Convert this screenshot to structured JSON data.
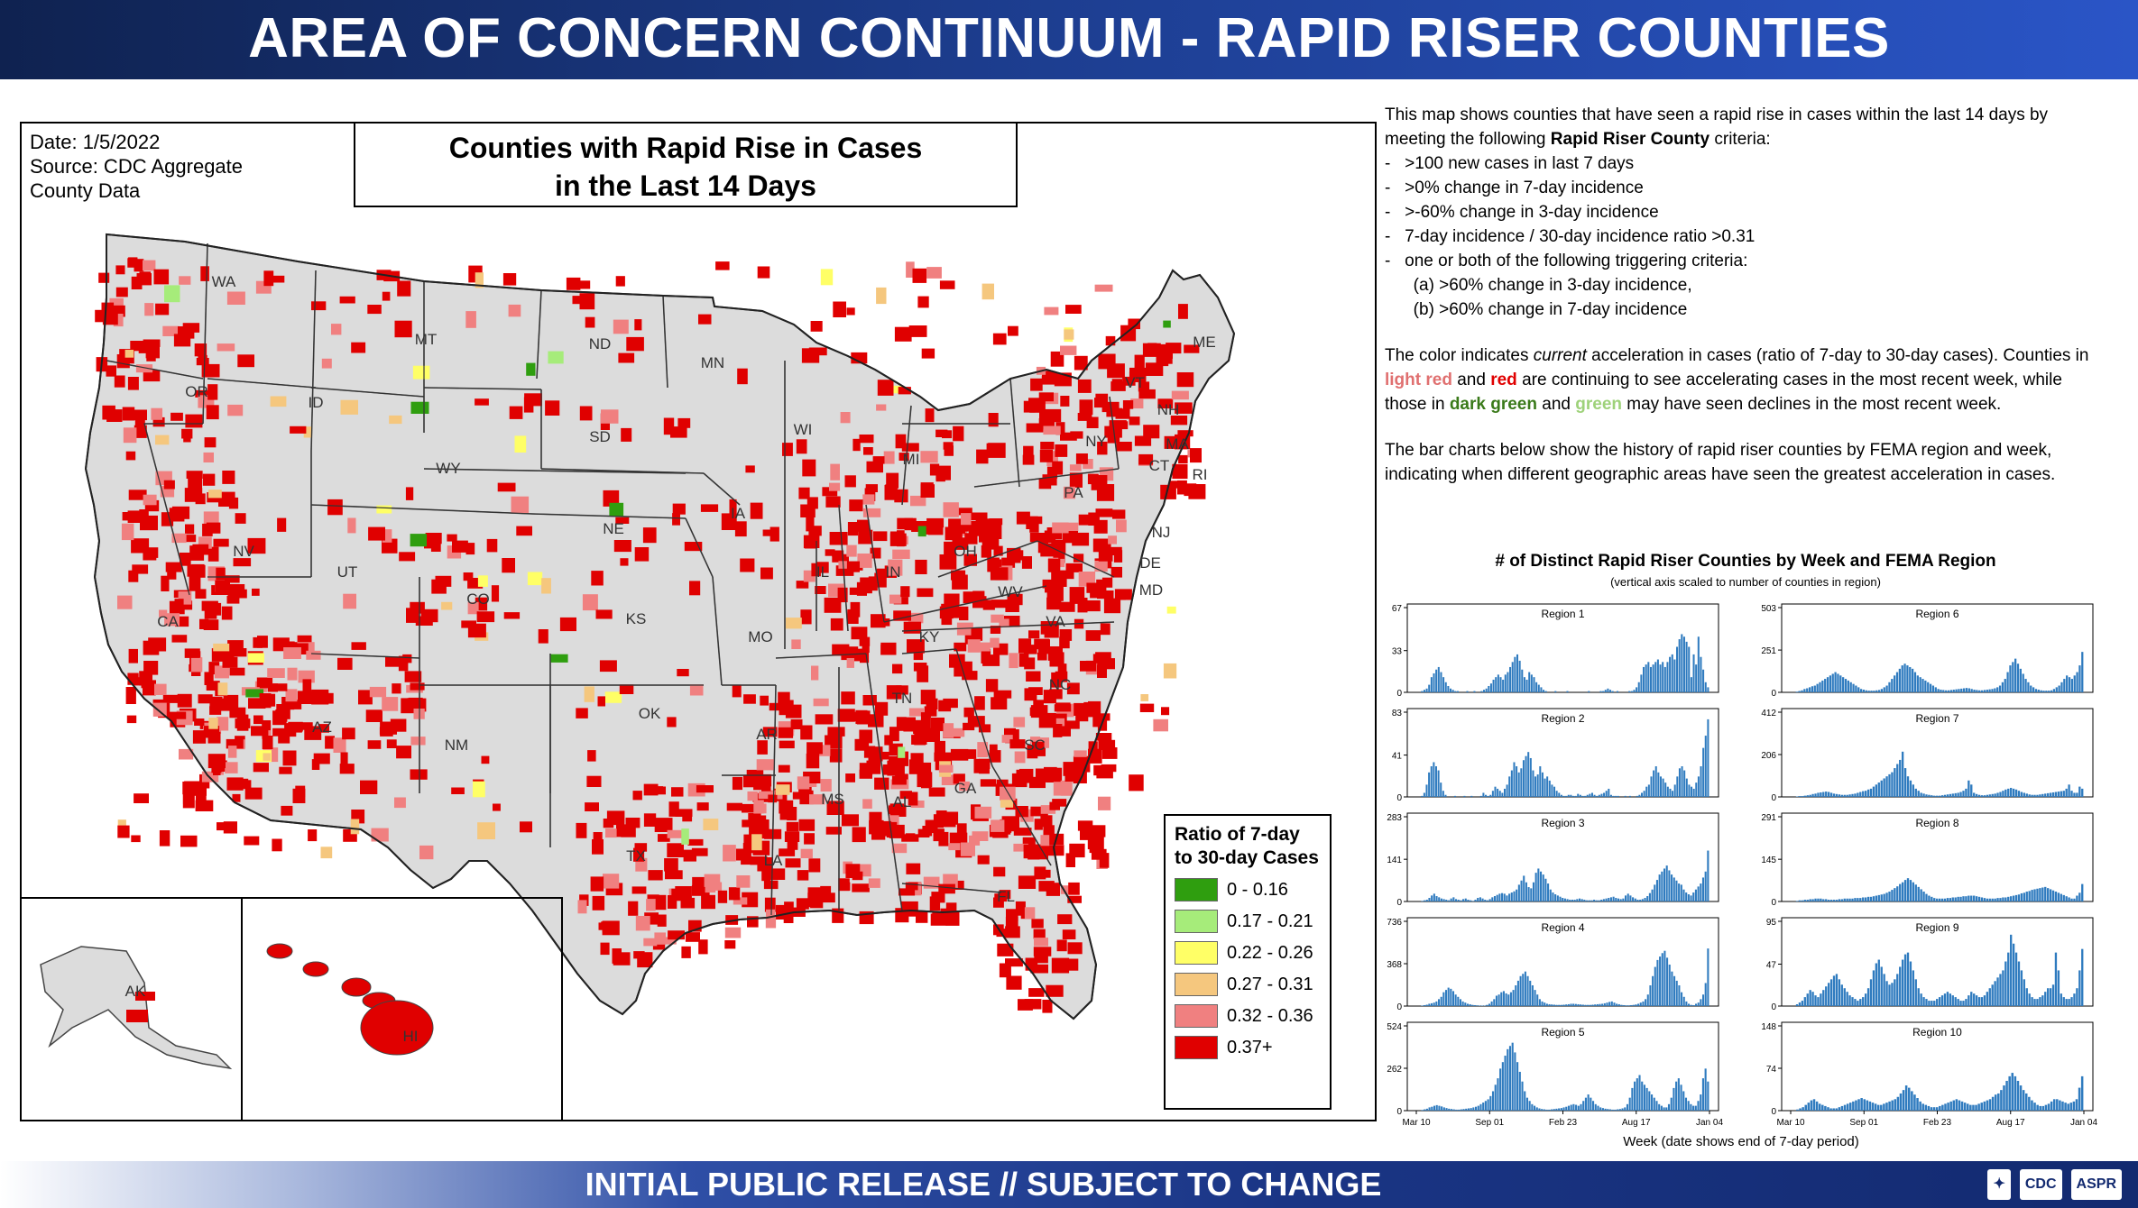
{
  "header": {
    "title": "AREA OF CONCERN CONTINUUM - RAPID RISER COUNTIES"
  },
  "footer": {
    "text": "INITIAL PUBLIC RELEASE // SUBJECT TO CHANGE",
    "logos": [
      "CDC",
      "ASPR"
    ]
  },
  "map": {
    "date_line": "Date: 1/5/2022",
    "source_line1": "Source: CDC Aggregate",
    "source_line2": "County Data",
    "title_line1": "Counties with Rapid Rise in Cases",
    "title_line2": "in the Last 14 Days",
    "state_labels": [
      "WA",
      "OR",
      "ID",
      "MT",
      "ND",
      "MN",
      "SD",
      "WY",
      "NE",
      "IA",
      "NV",
      "UT",
      "CO",
      "KS",
      "MO",
      "CA",
      "AZ",
      "NM",
      "OK",
      "TX",
      "AR",
      "LA",
      "MS",
      "AL",
      "GA",
      "FL",
      "SC",
      "NC",
      "TN",
      "KY",
      "VA",
      "WV",
      "OH",
      "IN",
      "IL",
      "WI",
      "MI",
      "PA",
      "NY",
      "NJ",
      "DE",
      "MD",
      "VT",
      "NH",
      "ME",
      "MA",
      "CT",
      "RI",
      "AK",
      "HI"
    ],
    "legend": {
      "title": "Ratio of 7-day to 30-day Cases",
      "items": [
        {
          "label": "0 - 0.16",
          "color": "#2f9e0f"
        },
        {
          "label": "0.17 - 0.21",
          "color": "#a6ec7a"
        },
        {
          "label": "0.22 - 0.26",
          "color": "#ffff66"
        },
        {
          "label": "0.27 - 0.31",
          "color": "#f5c77e"
        },
        {
          "label": "0.32 - 0.36",
          "color": "#f08080"
        },
        {
          "label": "0.37+",
          "color": "#e00000"
        }
      ]
    }
  },
  "description": {
    "p1_a": "This map shows counties that have seen a rapid rise in cases within the last 14 days by meeting the following ",
    "p1_bold": "Rapid Riser County",
    "p1_b": " criteria:",
    "criteria": [
      "-   >100 new cases in last 7 days",
      "-   >0% change in 7-day incidence",
      "-   >-60% change in 3-day incidence",
      "-   7-day incidence / 30-day incidence ratio >0.31",
      "-   one or both of the following triggering criteria:",
      "      (a) >60% change in 3-day incidence,",
      "      (b) >60% change in 7-day incidence"
    ],
    "p2_a": "The color indicates ",
    "p2_ital": "current",
    "p2_b": " acceleration in cases (ratio of 7-day to 30-day cases). Counties in ",
    "p2_lightred": "light red",
    "p2_and1": " and ",
    "p2_red": "red",
    "p2_c": "  are continuing to see accelerating cases in the most recent week, while those in ",
    "p2_darkgreen": "dark green",
    "p2_and2": " and ",
    "p2_green": "green",
    "p2_d": "  may have seen declines in the most recent week.",
    "p3": "The bar charts below show the history of rapid riser counties by FEMA region and week, indicating when different geographic areas have seen the greatest acceleration in cases."
  },
  "charts": {
    "title": "# of Distinct Rapid Riser Counties by Week and FEMA Region",
    "subtitle": "(vertical axis scaled to number of counties in region)",
    "xlabel": "Week (date shows end of 7-day period)",
    "x_ticks": [
      "Mar 10",
      "Sep 01",
      "Feb 23",
      "Aug 17",
      "Jan 04"
    ]
  },
  "chart_data": [
    {
      "type": "bar",
      "title": "Region 1",
      "ylim": [
        0,
        67
      ],
      "yticks": [
        0,
        33,
        67
      ],
      "values": [
        0,
        0,
        1,
        2,
        3,
        6,
        12,
        15,
        18,
        20,
        16,
        12,
        8,
        5,
        3,
        2,
        1,
        1,
        0,
        0,
        0,
        1,
        0,
        0,
        1,
        0,
        0,
        1,
        2,
        3,
        5,
        7,
        10,
        12,
        14,
        12,
        10,
        14,
        16,
        20,
        24,
        28,
        30,
        25,
        18,
        12,
        10,
        16,
        14,
        12,
        8,
        6,
        4,
        2,
        1,
        0,
        0,
        0,
        1,
        0,
        0,
        0,
        0,
        1,
        0,
        0,
        0,
        0,
        0,
        0,
        0,
        0,
        1,
        0,
        0,
        0,
        0,
        1,
        1,
        2,
        3,
        2,
        1,
        0,
        1,
        0,
        0,
        0,
        0,
        1,
        1,
        2,
        4,
        8,
        14,
        20,
        22,
        24,
        20,
        22,
        24,
        26,
        22,
        24,
        20,
        24,
        28,
        30,
        26,
        36,
        42,
        46,
        44,
        40,
        36,
        12,
        30,
        22,
        44,
        28,
        18,
        8,
        4
      ]
    },
    {
      "type": "bar",
      "title": "Region 2",
      "ylim": [
        0,
        83
      ],
      "yticks": [
        0,
        41,
        83
      ],
      "values": [
        0,
        0,
        1,
        4,
        12,
        24,
        30,
        34,
        30,
        26,
        14,
        6,
        2,
        0,
        0,
        0,
        1,
        0,
        0,
        0,
        1,
        0,
        0,
        1,
        0,
        0,
        0,
        1,
        4,
        2,
        1,
        2,
        6,
        10,
        8,
        6,
        4,
        8,
        12,
        20,
        26,
        34,
        30,
        24,
        28,
        36,
        40,
        44,
        38,
        26,
        20,
        22,
        30,
        24,
        18,
        20,
        16,
        12,
        10,
        6,
        4,
        2,
        1,
        1,
        2,
        2,
        1,
        1,
        3,
        2,
        1,
        1,
        2,
        3,
        4,
        2,
        1,
        2,
        3,
        4,
        6,
        8,
        2,
        1,
        1,
        1,
        0,
        0,
        1,
        0,
        1,
        0,
        0,
        1,
        2,
        4,
        6,
        10,
        12,
        20,
        26,
        30,
        24,
        20,
        18,
        14,
        10,
        8,
        6,
        12,
        20,
        28,
        30,
        26,
        18,
        12,
        10,
        8,
        14,
        20,
        30,
        48,
        60,
        76
      ]
    },
    {
      "type": "bar",
      "title": "Region 3",
      "ylim": [
        0,
        283
      ],
      "yticks": [
        0,
        141,
        283
      ],
      "values": [
        0,
        0,
        2,
        4,
        6,
        12,
        20,
        26,
        18,
        14,
        10,
        8,
        6,
        4,
        10,
        14,
        8,
        6,
        4,
        8,
        10,
        6,
        4,
        2,
        6,
        12,
        14,
        10,
        6,
        4,
        8,
        14,
        18,
        22,
        26,
        28,
        26,
        20,
        26,
        30,
        34,
        40,
        56,
        70,
        86,
        64,
        48,
        44,
        64,
        96,
        110,
        100,
        90,
        76,
        60,
        40,
        30,
        24,
        20,
        16,
        12,
        10,
        8,
        6,
        6,
        6,
        8,
        10,
        8,
        6,
        4,
        4,
        4,
        6,
        4,
        4,
        6,
        8,
        10,
        12,
        14,
        16,
        12,
        10,
        8,
        10,
        20,
        26,
        20,
        14,
        10,
        6,
        6,
        8,
        12,
        18,
        28,
        40,
        56,
        72,
        90,
        100,
        110,
        120,
        104,
        90,
        80,
        70,
        60,
        56,
        40,
        30,
        24,
        20,
        30,
        40,
        50,
        60,
        80,
        100,
        170
      ]
    },
    {
      "type": "bar",
      "title": "Region 4",
      "ylim": [
        0,
        736
      ],
      "yticks": [
        0,
        368,
        736
      ],
      "values": [
        0,
        0,
        4,
        8,
        12,
        20,
        24,
        30,
        40,
        60,
        80,
        120,
        140,
        160,
        150,
        130,
        100,
        80,
        60,
        40,
        30,
        20,
        16,
        10,
        8,
        6,
        4,
        4,
        4,
        10,
        20,
        40,
        60,
        90,
        100,
        120,
        130,
        110,
        100,
        120,
        140,
        180,
        220,
        260,
        280,
        300,
        260,
        220,
        180,
        140,
        100,
        60,
        40,
        30,
        20,
        16,
        14,
        12,
        10,
        10,
        10,
        12,
        14,
        16,
        20,
        20,
        18,
        16,
        14,
        12,
        10,
        10,
        10,
        12,
        14,
        16,
        18,
        20,
        24,
        30,
        36,
        40,
        30,
        20,
        16,
        10,
        8,
        6,
        6,
        8,
        10,
        14,
        20,
        30,
        40,
        60,
        100,
        180,
        260,
        340,
        400,
        430,
        460,
        480,
        420,
        360,
        300,
        260,
        220,
        180,
        120,
        80,
        40,
        20,
        10,
        8,
        20,
        30,
        60,
        100,
        200,
        500
      ]
    },
    {
      "type": "bar",
      "title": "Region 5",
      "ylim": [
        0,
        524
      ],
      "yticks": [
        0,
        262,
        524
      ],
      "values": [
        0,
        0,
        4,
        8,
        12,
        20,
        24,
        30,
        34,
        30,
        26,
        20,
        16,
        12,
        10,
        8,
        6,
        6,
        8,
        10,
        12,
        14,
        16,
        20,
        24,
        30,
        40,
        50,
        60,
        70,
        90,
        120,
        160,
        200,
        260,
        300,
        340,
        380,
        400,
        420,
        360,
        300,
        240,
        180,
        120,
        80,
        60,
        40,
        30,
        20,
        14,
        10,
        8,
        6,
        6,
        8,
        10,
        12,
        14,
        16,
        20,
        24,
        30,
        36,
        40,
        36,
        30,
        40,
        60,
        80,
        100,
        80,
        60,
        40,
        30,
        20,
        16,
        12,
        10,
        8,
        6,
        6,
        8,
        10,
        14,
        20,
        40,
        80,
        140,
        180,
        200,
        220,
        180,
        160,
        140,
        120,
        100,
        80,
        60,
        40,
        30,
        20,
        20,
        40,
        80,
        140,
        180,
        200,
        160,
        120,
        80,
        60,
        40,
        30,
        30,
        60,
        100,
        200,
        260,
        180
      ]
    },
    {
      "type": "bar",
      "title": "Region 6",
      "ylim": [
        0,
        503
      ],
      "yticks": [
        0,
        251,
        503
      ],
      "values": [
        0,
        0,
        4,
        8,
        12,
        20,
        24,
        30,
        36,
        40,
        50,
        60,
        70,
        80,
        90,
        100,
        110,
        120,
        110,
        100,
        90,
        80,
        70,
        60,
        50,
        40,
        30,
        20,
        16,
        12,
        10,
        10,
        10,
        12,
        14,
        20,
        30,
        40,
        60,
        80,
        100,
        120,
        140,
        160,
        170,
        160,
        150,
        140,
        120,
        100,
        90,
        80,
        70,
        60,
        50,
        40,
        30,
        20,
        16,
        14,
        12,
        12,
        14,
        16,
        18,
        20,
        22,
        24,
        26,
        24,
        20,
        16,
        14,
        12,
        12,
        14,
        16,
        18,
        20,
        24,
        30,
        40,
        60,
        80,
        120,
        160,
        180,
        200,
        170,
        140,
        110,
        80,
        60,
        40,
        30,
        20,
        16,
        12,
        10,
        10,
        10,
        12,
        20,
        30,
        40,
        60,
        80,
        100,
        90,
        80,
        100,
        120,
        160,
        240
      ]
    },
    {
      "type": "bar",
      "title": "Region 7",
      "ylim": [
        0,
        412
      ],
      "yticks": [
        0,
        206,
        412
      ],
      "values": [
        0,
        0,
        2,
        4,
        4,
        6,
        8,
        10,
        14,
        16,
        20,
        22,
        24,
        26,
        24,
        20,
        16,
        14,
        12,
        10,
        10,
        10,
        12,
        14,
        16,
        20,
        24,
        28,
        30,
        36,
        40,
        50,
        60,
        70,
        80,
        90,
        100,
        110,
        120,
        140,
        160,
        180,
        220,
        140,
        100,
        80,
        60,
        40,
        30,
        20,
        16,
        12,
        10,
        8,
        6,
        6,
        6,
        8,
        10,
        12,
        14,
        16,
        18,
        20,
        24,
        30,
        40,
        80,
        60,
        20,
        14,
        10,
        8,
        8,
        10,
        12,
        14,
        16,
        20,
        24,
        30,
        36,
        40,
        44,
        40,
        36,
        30,
        24,
        20,
        16,
        12,
        10,
        10,
        10,
        12,
        14,
        16,
        18,
        20,
        22,
        24,
        26,
        28,
        30,
        40,
        60,
        30,
        20,
        20,
        50,
        40
      ]
    },
    {
      "type": "bar",
      "title": "Region 8",
      "ylim": [
        0,
        291
      ],
      "yticks": [
        0,
        145,
        291
      ],
      "values": [
        0,
        0,
        2,
        4,
        4,
        6,
        6,
        8,
        8,
        10,
        10,
        10,
        8,
        8,
        6,
        6,
        6,
        6,
        8,
        8,
        10,
        10,
        10,
        10,
        12,
        12,
        12,
        14,
        14,
        16,
        16,
        18,
        20,
        22,
        24,
        26,
        30,
        34,
        40,
        46,
        52,
        60,
        66,
        74,
        80,
        74,
        66,
        58,
        50,
        42,
        34,
        26,
        20,
        16,
        12,
        10,
        10,
        10,
        10,
        12,
        12,
        14,
        14,
        16,
        16,
        18,
        18,
        20,
        20,
        20,
        18,
        16,
        14,
        12,
        10,
        10,
        10,
        10,
        12,
        12,
        14,
        14,
        16,
        18,
        20,
        22,
        24,
        28,
        30,
        34,
        36,
        40,
        42,
        44,
        46,
        48,
        50,
        46,
        42,
        38,
        34,
        30,
        26,
        22,
        18,
        14,
        10,
        10,
        20,
        30,
        60
      ]
    },
    {
      "type": "bar",
      "title": "Region 9",
      "ylim": [
        0,
        95
      ],
      "yticks": [
        0,
        47,
        95
      ],
      "values": [
        0,
        0,
        2,
        4,
        6,
        10,
        14,
        18,
        16,
        12,
        10,
        14,
        18,
        22,
        26,
        30,
        34,
        36,
        30,
        24,
        20,
        16,
        12,
        10,
        8,
        6,
        8,
        10,
        14,
        20,
        30,
        40,
        48,
        52,
        44,
        36,
        28,
        24,
        26,
        30,
        36,
        44,
        52,
        58,
        60,
        50,
        40,
        30,
        20,
        14,
        10,
        8,
        6,
        6,
        6,
        8,
        10,
        12,
        14,
        16,
        14,
        12,
        10,
        8,
        6,
        6,
        8,
        12,
        16,
        14,
        12,
        10,
        10,
        12,
        16,
        20,
        24,
        28,
        32,
        36,
        40,
        50,
        60,
        80,
        70,
        60,
        50,
        40,
        30,
        20,
        14,
        10,
        8,
        8,
        10,
        12,
        16,
        20,
        20,
        24,
        60,
        40,
        14,
        10,
        8,
        8,
        10,
        14,
        20,
        40,
        64
      ]
    },
    {
      "type": "bar",
      "title": "Region 10",
      "ylim": [
        0,
        148
      ],
      "yticks": [
        0,
        74,
        148
      ],
      "values": [
        0,
        0,
        2,
        4,
        6,
        10,
        14,
        18,
        20,
        16,
        12,
        10,
        8,
        6,
        4,
        4,
        4,
        6,
        8,
        10,
        12,
        14,
        16,
        18,
        20,
        22,
        20,
        18,
        16,
        14,
        12,
        10,
        10,
        12,
        14,
        16,
        18,
        20,
        24,
        30,
        36,
        44,
        40,
        34,
        28,
        22,
        16,
        12,
        10,
        8,
        6,
        6,
        6,
        8,
        10,
        12,
        14,
        16,
        18,
        20,
        18,
        16,
        14,
        12,
        10,
        10,
        10,
        12,
        14,
        16,
        18,
        20,
        24,
        28,
        30,
        36,
        44,
        52,
        60,
        66,
        60,
        52,
        44,
        36,
        30,
        24,
        18,
        14,
        10,
        8,
        8,
        10,
        12,
        16,
        20,
        20,
        18,
        16,
        14,
        12,
        14,
        16,
        20,
        40,
        60
      ]
    }
  ]
}
